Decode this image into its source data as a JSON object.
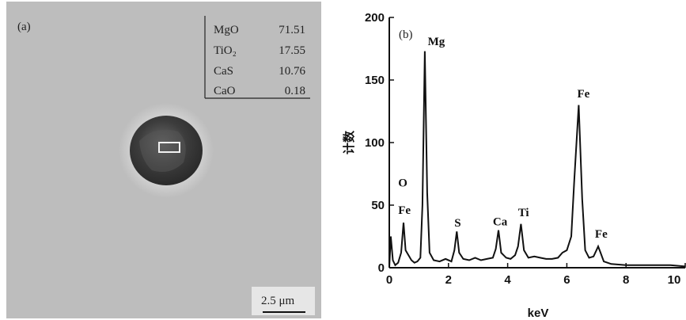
{
  "panel_a": {
    "label": "(a)",
    "composition_table": [
      {
        "name": "MgO",
        "value": "71.51"
      },
      {
        "name": "TiO₂",
        "value": "17.55"
      },
      {
        "name": "CaS",
        "value": "10.76"
      },
      {
        "name": "CaO",
        "value": "0.18"
      }
    ],
    "scale_bar_label": "2.5 μm"
  },
  "chart_data": {
    "type": "line",
    "panel_label": "(b)",
    "xlabel": "keV",
    "ylabel": "计数",
    "xlim": [
      0,
      10
    ],
    "ylim": [
      0,
      200
    ],
    "x_ticks": [
      0,
      2,
      4,
      6,
      8,
      10
    ],
    "x_tick_labels": [
      "0",
      "2",
      "4",
      "6",
      "8",
      "10"
    ],
    "y_ticks": [
      0,
      50,
      100,
      150,
      200
    ],
    "y_tick_labels": [
      "0",
      "50",
      "100",
      "150",
      "200"
    ],
    "grid": false,
    "series": [
      {
        "points": [
          [
            0.0,
            0
          ],
          [
            0.05,
            25
          ],
          [
            0.12,
            6
          ],
          [
            0.2,
            2
          ],
          [
            0.3,
            4
          ],
          [
            0.4,
            12
          ],
          [
            0.48,
            36
          ],
          [
            0.55,
            14
          ],
          [
            0.65,
            10
          ],
          [
            0.75,
            6
          ],
          [
            0.85,
            4
          ],
          [
            0.95,
            5
          ],
          [
            1.05,
            8
          ],
          [
            1.12,
            50
          ],
          [
            1.2,
            173
          ],
          [
            1.28,
            60
          ],
          [
            1.36,
            12
          ],
          [
            1.5,
            6
          ],
          [
            1.7,
            5
          ],
          [
            1.9,
            7
          ],
          [
            2.1,
            5
          ],
          [
            2.2,
            14
          ],
          [
            2.28,
            29
          ],
          [
            2.36,
            12
          ],
          [
            2.5,
            7
          ],
          [
            2.7,
            6
          ],
          [
            2.9,
            8
          ],
          [
            3.1,
            6
          ],
          [
            3.3,
            7
          ],
          [
            3.5,
            8
          ],
          [
            3.6,
            15
          ],
          [
            3.69,
            30
          ],
          [
            3.78,
            12
          ],
          [
            3.95,
            8
          ],
          [
            4.1,
            7
          ],
          [
            4.25,
            10
          ],
          [
            4.35,
            17
          ],
          [
            4.45,
            35
          ],
          [
            4.55,
            14
          ],
          [
            4.7,
            8
          ],
          [
            4.9,
            9
          ],
          [
            5.1,
            8
          ],
          [
            5.3,
            7
          ],
          [
            5.5,
            7
          ],
          [
            5.7,
            8
          ],
          [
            5.85,
            12
          ],
          [
            6.0,
            14
          ],
          [
            6.15,
            25
          ],
          [
            6.25,
            70
          ],
          [
            6.4,
            130
          ],
          [
            6.52,
            55
          ],
          [
            6.62,
            14
          ],
          [
            6.75,
            8
          ],
          [
            6.9,
            9
          ],
          [
            7.0,
            14
          ],
          [
            7.06,
            17
          ],
          [
            7.14,
            12
          ],
          [
            7.25,
            5
          ],
          [
            7.5,
            3
          ],
          [
            8.0,
            2
          ],
          [
            8.5,
            2
          ],
          [
            9.0,
            2
          ],
          [
            9.5,
            2
          ],
          [
            10.0,
            1
          ]
        ]
      }
    ],
    "annotations": [
      {
        "text": "Mg",
        "x": 1.3,
        "y": 178
      },
      {
        "text": "Fe",
        "x": 6.35,
        "y": 136
      },
      {
        "text": "O",
        "x": 0.3,
        "y": 65
      },
      {
        "text": "Fe",
        "x": 0.3,
        "y": 43
      },
      {
        "text": "S",
        "x": 2.2,
        "y": 33
      },
      {
        "text": "Ca",
        "x": 3.5,
        "y": 34
      },
      {
        "text": "Ti",
        "x": 4.35,
        "y": 41
      },
      {
        "text": "Fe",
        "x": 6.95,
        "y": 24
      }
    ]
  }
}
